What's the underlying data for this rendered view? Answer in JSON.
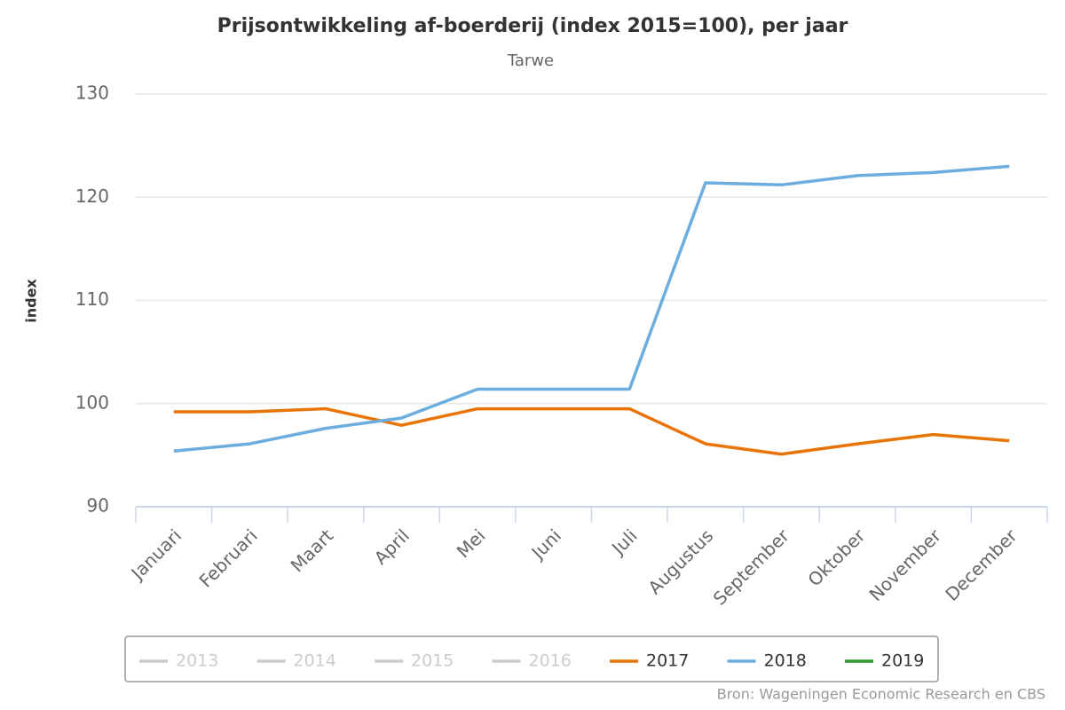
{
  "chart_data": {
    "type": "line",
    "title": "Prijsontwikkeling af-boerderij (index 2015=100), per jaar",
    "subtitle": "Tarwe",
    "y_label": "index",
    "source": "Bron: Wageningen Economic Research en CBS",
    "categories": [
      "Januari",
      "Februari",
      "Maart",
      "April",
      "Mei",
      "Juni",
      "Juli",
      "Augustus",
      "September",
      "Oktober",
      "November",
      "December"
    ],
    "ylim": [
      90,
      130
    ],
    "yticks": [
      90,
      100,
      110,
      120,
      130
    ],
    "grid": true,
    "legend": "bottom",
    "series": [
      {
        "name": "2013",
        "color": "#cccccc",
        "visible": false,
        "values": [
          null,
          null,
          null,
          null,
          null,
          null,
          null,
          null,
          null,
          null,
          null,
          null
        ]
      },
      {
        "name": "2014",
        "color": "#cccccc",
        "visible": false,
        "values": [
          null,
          null,
          null,
          null,
          null,
          null,
          null,
          null,
          null,
          null,
          null,
          null
        ]
      },
      {
        "name": "2015",
        "color": "#cccccc",
        "visible": false,
        "values": [
          null,
          null,
          null,
          null,
          null,
          null,
          null,
          null,
          null,
          null,
          null,
          null
        ]
      },
      {
        "name": "2016",
        "color": "#cccccc",
        "visible": false,
        "values": [
          null,
          null,
          null,
          null,
          null,
          null,
          null,
          null,
          null,
          null,
          null,
          null
        ]
      },
      {
        "name": "2017",
        "color": "#e97405",
        "visible": true,
        "values": [
          99.2,
          99.2,
          99.5,
          97.9,
          99.5,
          99.5,
          99.5,
          96.1,
          95.1,
          96.1,
          97.0,
          96.4
        ]
      },
      {
        "name": "2018",
        "color": "#6caddf",
        "visible": true,
        "values": [
          95.4,
          96.1,
          97.6,
          98.6,
          101.4,
          101.4,
          101.4,
          121.4,
          121.2,
          122.1,
          122.4,
          123.0
        ]
      },
      {
        "name": "2019",
        "color": "#2e9a2e",
        "visible": true,
        "values": [
          null,
          null,
          null,
          null,
          null,
          null,
          null,
          null,
          null,
          null,
          null,
          null
        ]
      }
    ]
  }
}
